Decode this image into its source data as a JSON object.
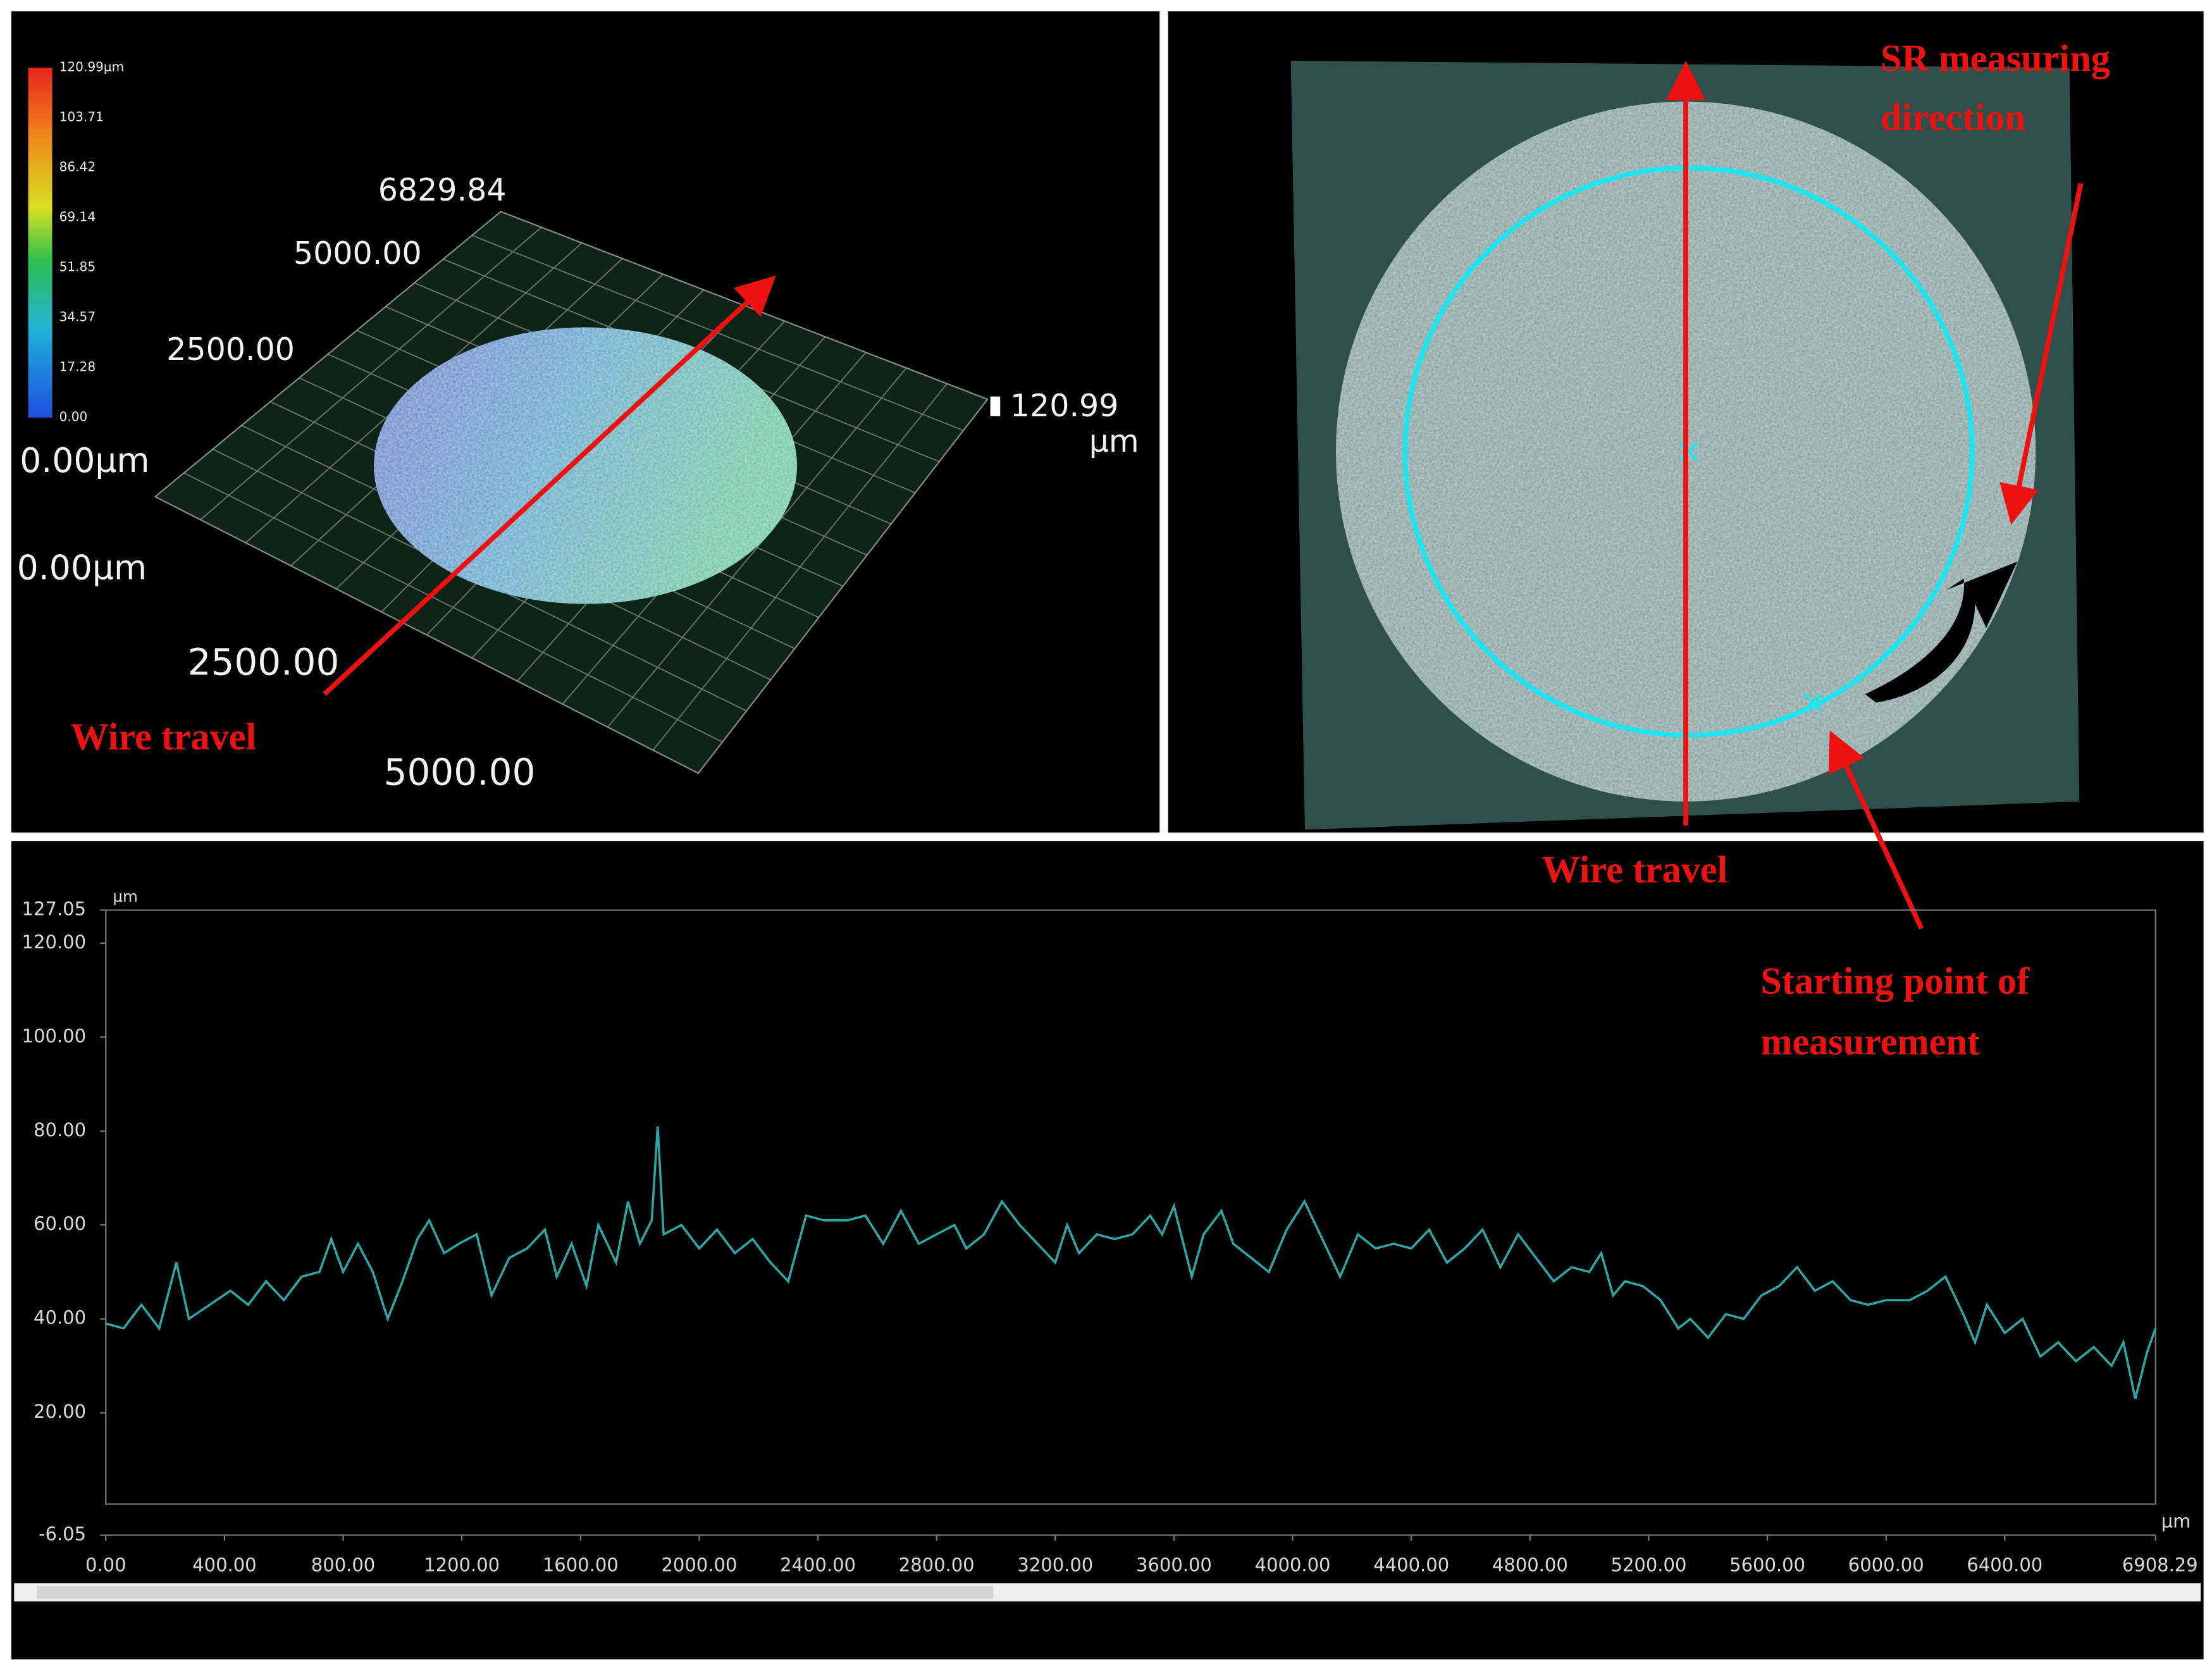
{
  "colorbar": {
    "labels": [
      "120.99µm",
      "103.71",
      "86.42",
      "69.14",
      "51.85",
      "34.57",
      "17.28",
      "0.00"
    ]
  },
  "surface_3d": {
    "labels": [
      "6829.84",
      "5000.00",
      "2500.00",
      "0.00µm",
      "0.00µm",
      "2500.00",
      "5000.00"
    ],
    "z_max": "120.99",
    "z_unit": "µm",
    "annotation": "Wire travel"
  },
  "top_view": {
    "annotations": {
      "sr_direction": [
        "SR measuring",
        "direction"
      ],
      "wire_travel": "Wire travel",
      "start_point": [
        "Starting point of",
        "measurement"
      ]
    }
  },
  "chart_data": {
    "type": "line",
    "y_unit": "µm",
    "x_unit": "µm",
    "xlim": [
      0,
      6908.29
    ],
    "ylim": [
      -6.05,
      127.05
    ],
    "xticks": [
      {
        "value": 0,
        "label": "0.00"
      },
      {
        "value": 400,
        "label": "400.00"
      },
      {
        "value": 800,
        "label": "800.00"
      },
      {
        "value": 1200,
        "label": "1200.00"
      },
      {
        "value": 1600,
        "label": "1600.00"
      },
      {
        "value": 2000,
        "label": "2000.00"
      },
      {
        "value": 2400,
        "label": "2400.00"
      },
      {
        "value": 2800,
        "label": "2800.00"
      },
      {
        "value": 3200,
        "label": "3200.00"
      },
      {
        "value": 3600,
        "label": "3600.00"
      },
      {
        "value": 4000,
        "label": "4000.00"
      },
      {
        "value": 4400,
        "label": "4400.00"
      },
      {
        "value": 4800,
        "label": "4800.00"
      },
      {
        "value": 5200,
        "label": "5200.00"
      },
      {
        "value": 5600,
        "label": "5600.00"
      },
      {
        "value": 6000,
        "label": "6000.00"
      },
      {
        "value": 6400,
        "label": "6400.00"
      },
      6908.29
    ],
    "yticks": [
      -6.05,
      {
        "value": 20,
        "label": "20.00"
      },
      {
        "value": 40,
        "label": "40.00"
      },
      {
        "value": 60,
        "label": "60.00"
      },
      {
        "value": 80,
        "label": "80.00"
      },
      {
        "value": 100,
        "label": "100.00"
      },
      {
        "value": 120,
        "label": "120.00"
      },
      127.05
    ],
    "x": [
      0,
      60,
      120,
      180,
      238,
      280,
      350,
      420,
      480,
      540,
      600,
      660,
      720,
      760,
      800,
      850,
      900,
      950,
      1000,
      1050,
      1090,
      1140,
      1190,
      1250,
      1300,
      1360,
      1420,
      1480,
      1520,
      1570,
      1620,
      1660,
      1720,
      1760,
      1800,
      1840,
      1860,
      1880,
      1940,
      2000,
      2060,
      2120,
      2180,
      2240,
      2300,
      2360,
      2420,
      2500,
      2560,
      2620,
      2680,
      2740,
      2800,
      2860,
      2900,
      2960,
      3020,
      3080,
      3140,
      3200,
      3240,
      3280,
      3340,
      3400,
      3460,
      3520,
      3560,
      3600,
      3660,
      3700,
      3760,
      3800,
      3860,
      3920,
      3980,
      4040,
      4100,
      4160,
      4220,
      4280,
      4340,
      4400,
      4460,
      4520,
      4580,
      4640,
      4700,
      4760,
      4820,
      4880,
      4940,
      5000,
      5040,
      5080,
      5120,
      5180,
      5240,
      5300,
      5340,
      5400,
      5460,
      5520,
      5580,
      5640,
      5700,
      5760,
      5820,
      5880,
      5940,
      6000,
      6080,
      6140,
      6200,
      6260,
      6300,
      6340,
      6400,
      6460,
      6520,
      6580,
      6640,
      6700,
      6760,
      6800,
      6840,
      6880,
      6908.29
    ],
    "series": [
      {
        "color": "#2aa7a7",
        "values": [
          39,
          38,
          43,
          38,
          52,
          40,
          43,
          46,
          43,
          48,
          44,
          49,
          50,
          57,
          50,
          56,
          50,
          40,
          48,
          57,
          61,
          54,
          56,
          58,
          45,
          53,
          55,
          59,
          49,
          56,
          47,
          60,
          52,
          65,
          56,
          61,
          81,
          58,
          60,
          55,
          59,
          54,
          57,
          52,
          48,
          62,
          61,
          61,
          62,
          56,
          63,
          56,
          58,
          60,
          55,
          58,
          65,
          60,
          56,
          52,
          60,
          54,
          58,
          57,
          58,
          62,
          58,
          64,
          49,
          58,
          63,
          56,
          53,
          50,
          59,
          65,
          57,
          49,
          58,
          55,
          56,
          55,
          59,
          52,
          55,
          59,
          51,
          58,
          53,
          48,
          51,
          50,
          54,
          45,
          48,
          47,
          44,
          38,
          40,
          36,
          41,
          40,
          45,
          47,
          51,
          46,
          48,
          44,
          43,
          44,
          44,
          46,
          49,
          41,
          35,
          43,
          37,
          40,
          32,
          35,
          31,
          34,
          30,
          35,
          23,
          33,
          38
        ]
      }
    ]
  }
}
